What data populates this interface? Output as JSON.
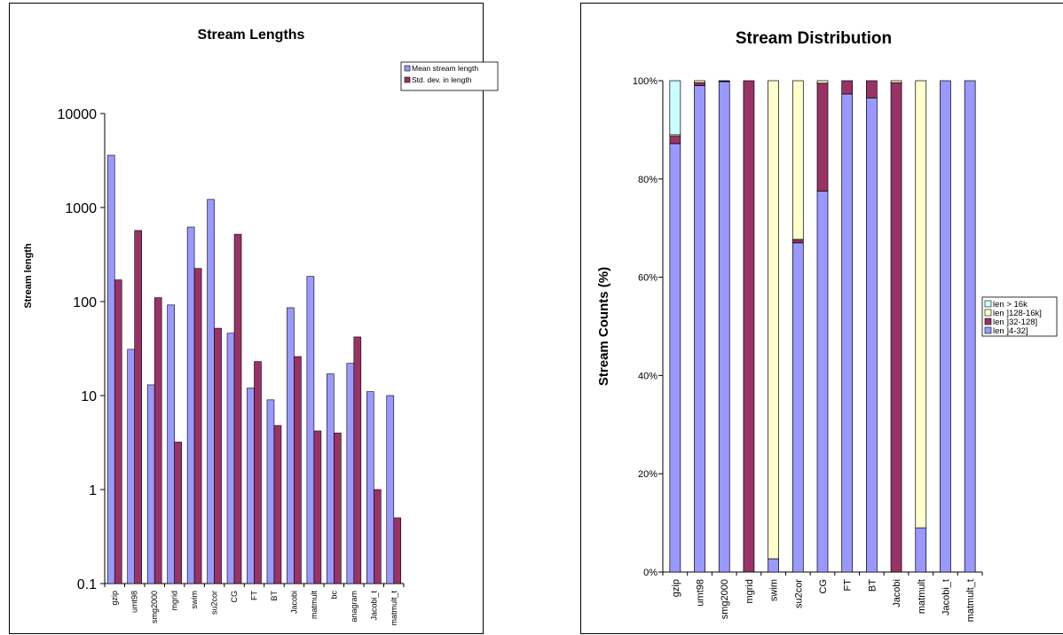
{
  "chart_data": [
    {
      "type": "bar",
      "title": "Stream Lengths",
      "xlabel": "",
      "ylabel": "Stream length",
      "yscale": "log",
      "ylim": [
        0.1,
        10000
      ],
      "y_ticks": [
        "0.1",
        "1",
        "10",
        "100",
        "1000",
        "10000"
      ],
      "grid": false,
      "legend_position": "top-right",
      "categories": [
        "gzip",
        "umt98",
        "smg2000",
        "mgrid",
        "swim",
        "su2cor",
        "CG",
        "FT",
        "BT",
        "Jacobi",
        "matmult",
        "bc",
        "anagram",
        "Jacobi_t",
        "matmult_t"
      ],
      "series": [
        {
          "name": "Mean stream length",
          "color": "#9999ff",
          "values": [
            3600,
            31,
            13,
            92,
            620,
            1220,
            46,
            12,
            9,
            86,
            185,
            17,
            22,
            11,
            10
          ]
        },
        {
          "name": "Std. dev. in length",
          "color": "#993366",
          "values": [
            170,
            570,
            110,
            3.2,
            225,
            52,
            520,
            23,
            4.8,
            26,
            4.2,
            4,
            42,
            1,
            0.5
          ]
        }
      ]
    },
    {
      "type": "bar",
      "stacked": "percent",
      "title": "Stream Distribution",
      "xlabel": "",
      "ylabel": "Stream Counts (%)",
      "ylim": [
        0,
        100
      ],
      "y_ticks": [
        "0%",
        "20%",
        "40%",
        "60%",
        "80%",
        "100%"
      ],
      "grid": false,
      "legend_position": "right",
      "categories": [
        "gzip",
        "umt98",
        "smg2000",
        "mgrid",
        "swim",
        "su2cor",
        "CG",
        "FT",
        "BT",
        "Jacobi",
        "matmult",
        "Jacobi_t",
        "matmult_t"
      ],
      "series": [
        {
          "name": "len ]4-32]",
          "color": "#9999ff",
          "values": [
            87.2,
            99,
            99.8,
            0,
            2.7,
            67,
            77.5,
            97.3,
            96.5,
            0,
            9,
            100,
            100
          ]
        },
        {
          "name": "len ]32-128]",
          "color": "#993366",
          "values": [
            1.5,
            0.6,
            0.1,
            100,
            0,
            0.7,
            22,
            2.7,
            3.5,
            99.6,
            0,
            0,
            0
          ]
        },
        {
          "name": "len ]128-16k]",
          "color": "#ffffcc",
          "values": [
            0.3,
            0.4,
            0.1,
            0,
            97.3,
            32.3,
            0.5,
            0,
            0,
            0.4,
            91,
            0,
            0
          ]
        },
        {
          "name": "len > 16k",
          "color": "#ccffff",
          "values": [
            11,
            0,
            0,
            0,
            0,
            0,
            0,
            0,
            0,
            0,
            0,
            0,
            0
          ]
        }
      ]
    }
  ]
}
